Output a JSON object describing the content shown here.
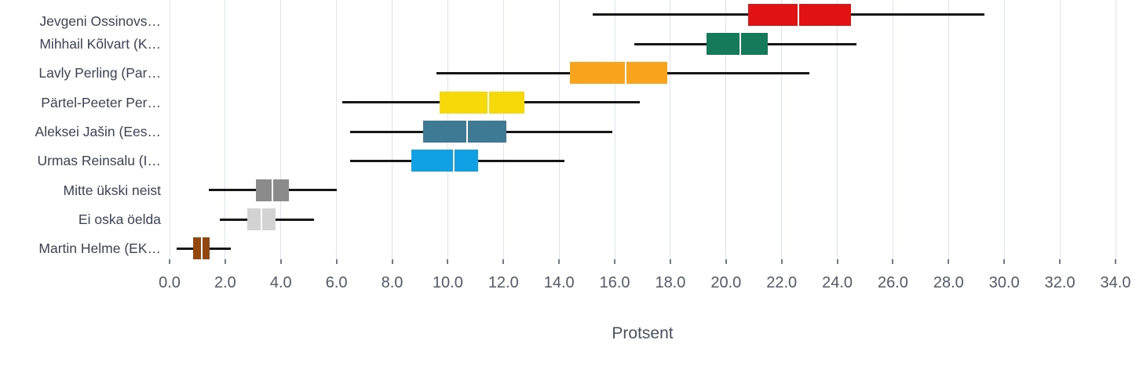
{
  "chart_data": {
    "type": "boxplot",
    "orientation": "horizontal",
    "title": "",
    "xlabel": "Protsent",
    "xlim": [
      0,
      34
    ],
    "grid": true,
    "x_ticks": [
      0,
      2,
      4,
      6,
      8,
      10,
      12,
      14,
      16,
      18,
      20,
      22,
      24,
      26,
      28,
      30,
      32,
      34
    ],
    "x_tick_labels": [
      "0.0",
      "2.0",
      "4.0",
      "6.0",
      "8.0",
      "10.0",
      "12.0",
      "14.0",
      "16.0",
      "18.0",
      "20.0",
      "22.0",
      "24.0",
      "26.0",
      "28.0",
      "30.0",
      "32.0",
      "34.0"
    ],
    "rows": [
      {
        "label": "Jevgeni Ossinovs…",
        "color": "#e11212",
        "low": 15.2,
        "q1": 20.8,
        "median": 22.6,
        "q3": 24.5,
        "high": 29.3
      },
      {
        "label": "Mihhail Kõlvart (K…",
        "color": "#15795b",
        "low": 16.7,
        "q1": 19.3,
        "median": 20.5,
        "q3": 21.5,
        "high": 24.7
      },
      {
        "label": "Lavly Perling (Par…",
        "color": "#f9a41c",
        "low": 9.6,
        "q1": 14.4,
        "median": 16.4,
        "q3": 17.9,
        "high": 23.0
      },
      {
        "label": "Pärtel-Peeter Per…",
        "color": "#f6d908",
        "low": 6.2,
        "q1": 9.7,
        "median": 11.45,
        "q3": 12.75,
        "high": 16.9
      },
      {
        "label": "Aleksei Jašin (Ees…",
        "color": "#3e7a93",
        "low": 6.5,
        "q1": 9.1,
        "median": 10.7,
        "q3": 12.1,
        "high": 15.9
      },
      {
        "label": "Urmas Reinsalu (I…",
        "color": "#10a0e4",
        "low": 6.5,
        "q1": 8.7,
        "median": 10.2,
        "q3": 11.1,
        "high": 14.2
      },
      {
        "label": "Mitte ükski neist",
        "color": "#8b8b8b",
        "low": 1.4,
        "q1": 3.1,
        "median": 3.7,
        "q3": 4.3,
        "high": 6.0
      },
      {
        "label": "Ei oska öelda",
        "color": "#d3d3d3",
        "low": 1.8,
        "q1": 2.8,
        "median": 3.3,
        "q3": 3.8,
        "high": 5.2
      },
      {
        "label": "Martin Helme (EK…",
        "color": "#93470e",
        "low": 0.25,
        "q1": 0.85,
        "median": 1.15,
        "q3": 1.45,
        "high": 2.2
      }
    ]
  }
}
